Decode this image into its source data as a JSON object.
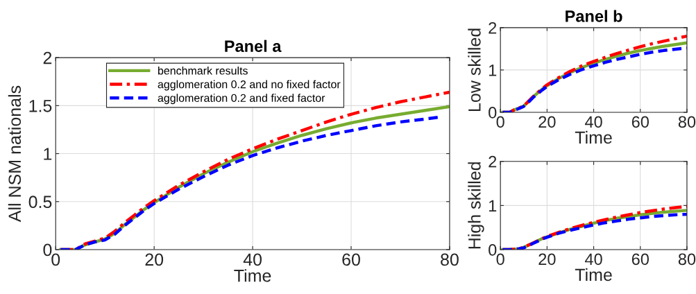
{
  "chart_data": [
    {
      "type": "line",
      "title": "Panel a",
      "xlabel": "Time",
      "ylabel": "All NSM nationals",
      "xlim": [
        0,
        80
      ],
      "xticks": [
        0,
        20,
        40,
        60,
        80
      ],
      "ylim": [
        0,
        2
      ],
      "yticks": [
        0,
        0.5,
        1,
        1.5,
        2
      ],
      "grid": true,
      "legend": "top left",
      "x": [
        1,
        4,
        6,
        8,
        10,
        12,
        14,
        16,
        18,
        20,
        25,
        30,
        35,
        40,
        45,
        50,
        55,
        60,
        65,
        70,
        75,
        80
      ],
      "series": [
        {
          "name": "benchmark results",
          "color": "#77ac30",
          "line_style": "solid",
          "values": [
            0,
            0,
            0.05,
            0.08,
            0.11,
            0.17,
            0.26,
            0.34,
            0.42,
            0.49,
            0.65,
            0.79,
            0.91,
            1.02,
            1.11,
            1.19,
            1.26,
            1.32,
            1.37,
            1.41,
            1.45,
            1.49
          ]
        },
        {
          "name": "agglomeration 0.2 and no fixed factor",
          "color": "#ff0000",
          "line_style": "dashdot",
          "values": [
            0,
            0,
            0.06,
            0.09,
            0.12,
            0.19,
            0.28,
            0.36,
            0.44,
            0.51,
            0.67,
            0.81,
            0.94,
            1.05,
            1.15,
            1.24,
            1.33,
            1.41,
            1.48,
            1.54,
            1.59,
            1.64
          ]
        },
        {
          "name": "agglomeration 0.2 and fixed factor",
          "color": "#0000ff",
          "line_style": "dashed",
          "x": [
            1,
            4,
            6,
            8,
            10,
            12,
            14,
            16,
            18,
            20,
            25,
            30,
            35,
            40,
            45,
            50,
            55,
            60,
            65,
            70,
            75,
            78
          ],
          "values": [
            0,
            0,
            0.05,
            0.08,
            0.1,
            0.16,
            0.25,
            0.33,
            0.41,
            0.48,
            0.63,
            0.76,
            0.88,
            0.98,
            1.06,
            1.13,
            1.19,
            1.24,
            1.29,
            1.33,
            1.36,
            1.38
          ]
        }
      ]
    },
    {
      "type": "line",
      "title": "Panel b",
      "xlabel": "Time",
      "ylabel": "Low skilled",
      "xlim": [
        0,
        80
      ],
      "xticks": [
        0,
        20,
        40,
        60,
        80
      ],
      "ylim": [
        0,
        2
      ],
      "yticks": [
        0,
        1,
        2
      ],
      "grid": true,
      "x": [
        1,
        4,
        6,
        8,
        10,
        12,
        14,
        16,
        18,
        20,
        25,
        30,
        35,
        40,
        45,
        50,
        55,
        60,
        65,
        70,
        75,
        80
      ],
      "series": [
        {
          "color": "#77ac30",
          "line_style": "solid",
          "values": [
            0,
            0,
            0.06,
            0.1,
            0.15,
            0.25,
            0.36,
            0.46,
            0.55,
            0.63,
            0.8,
            0.94,
            1.06,
            1.16,
            1.25,
            1.33,
            1.4,
            1.46,
            1.51,
            1.56,
            1.6,
            1.64
          ]
        },
        {
          "color": "#ff0000",
          "line_style": "dashdot",
          "values": [
            0,
            0,
            0.06,
            0.1,
            0.15,
            0.26,
            0.37,
            0.47,
            0.56,
            0.65,
            0.82,
            0.97,
            1.1,
            1.2,
            1.3,
            1.39,
            1.47,
            1.55,
            1.62,
            1.68,
            1.74,
            1.8
          ]
        },
        {
          "color": "#0000ff",
          "line_style": "dashed",
          "values": [
            0,
            0,
            0.05,
            0.09,
            0.14,
            0.24,
            0.35,
            0.44,
            0.53,
            0.61,
            0.77,
            0.9,
            1.01,
            1.1,
            1.18,
            1.25,
            1.31,
            1.37,
            1.42,
            1.46,
            1.49,
            1.52
          ]
        }
      ]
    },
    {
      "type": "line",
      "xlabel": "Time",
      "ylabel": "High skilled",
      "xlim": [
        0,
        80
      ],
      "xticks": [
        0,
        20,
        40,
        60,
        80
      ],
      "ylim": [
        0,
        2
      ],
      "yticks": [
        0,
        1,
        2
      ],
      "grid": true,
      "x": [
        1,
        4,
        6,
        8,
        10,
        12,
        14,
        16,
        18,
        20,
        25,
        30,
        35,
        40,
        45,
        50,
        55,
        60,
        65,
        70,
        75,
        80
      ],
      "series": [
        {
          "color": "#77ac30",
          "line_style": "solid",
          "values": [
            0,
            0,
            0.01,
            0.02,
            0.05,
            0.1,
            0.15,
            0.2,
            0.25,
            0.29,
            0.38,
            0.46,
            0.53,
            0.6,
            0.66,
            0.71,
            0.75,
            0.79,
            0.82,
            0.85,
            0.87,
            0.89
          ]
        },
        {
          "color": "#ff0000",
          "line_style": "dashdot",
          "values": [
            0,
            0,
            0.01,
            0.02,
            0.05,
            0.1,
            0.15,
            0.2,
            0.25,
            0.3,
            0.39,
            0.48,
            0.55,
            0.62,
            0.68,
            0.74,
            0.79,
            0.84,
            0.88,
            0.92,
            0.95,
            0.98
          ]
        },
        {
          "color": "#0000ff",
          "line_style": "dashed",
          "values": [
            0,
            0,
            0.01,
            0.02,
            0.04,
            0.09,
            0.14,
            0.19,
            0.24,
            0.28,
            0.37,
            0.44,
            0.5,
            0.56,
            0.61,
            0.65,
            0.69,
            0.72,
            0.75,
            0.77,
            0.79,
            0.8
          ]
        }
      ]
    }
  ]
}
